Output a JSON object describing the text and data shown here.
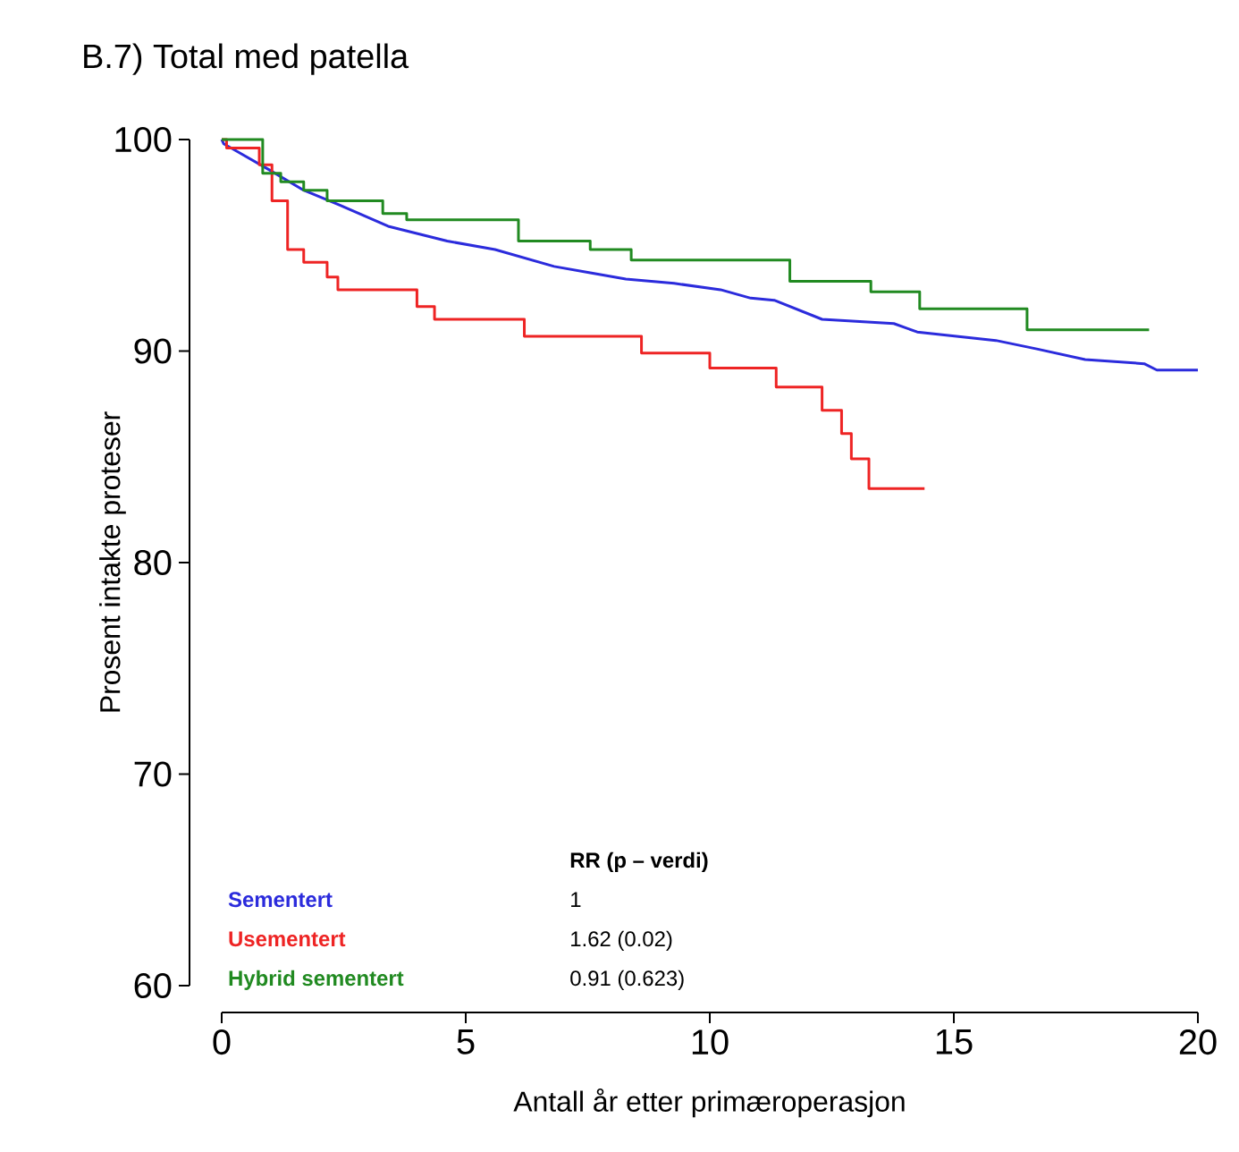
{
  "chart_data": {
    "type": "step",
    "title": "B.7) Total med patella",
    "xlabel": "Antall år etter primæroperasjon",
    "ylabel": "Prosent intakte proteser",
    "xlim": [
      0,
      20
    ],
    "ylim": [
      60,
      100
    ],
    "xticks": [
      0,
      5,
      10,
      15,
      20
    ],
    "yticks": [
      60,
      70,
      80,
      90,
      100
    ],
    "grid": false,
    "legend": "bottom left",
    "line_style": "solid",
    "marker": "none",
    "series": [
      {
        "name": "Sementert",
        "type": "line",
        "color": "#2b2bdc",
        "x": [
          0,
          0.04,
          0.95,
          1.68,
          2.42,
          3.41,
          4.62,
          5.6,
          6.81,
          7.55,
          8.28,
          9.27,
          10.22,
          10.84,
          11.32,
          12.3,
          13.77,
          14.25,
          15.86,
          16.7,
          17.69,
          18.9,
          19.16,
          20.0
        ],
        "values": [
          100,
          99.8,
          98.6,
          97.6,
          96.9,
          95.9,
          95.2,
          94.8,
          94.0,
          93.7,
          93.4,
          93.2,
          92.9,
          92.5,
          92.4,
          91.5,
          91.3,
          90.9,
          90.5,
          90.1,
          89.6,
          89.4,
          89.1,
          89.1
        ]
      },
      {
        "name": "Usementert",
        "color": "#ee2424",
        "x": [
          0,
          0.1,
          0.77,
          1.03,
          1.35,
          1.68,
          2.16,
          2.38,
          4.0,
          4.36,
          6.2,
          8.6,
          10.0,
          11.36,
          12.3,
          12.7,
          12.9,
          13.26,
          14.4
        ],
        "values": [
          100,
          99.6,
          98.8,
          97.1,
          94.8,
          94.2,
          93.5,
          92.9,
          92.1,
          91.5,
          90.7,
          89.9,
          89.2,
          88.3,
          87.2,
          86.1,
          84.9,
          83.5,
          83.5
        ]
      },
      {
        "name": "Hybrid sementert",
        "color": "#218a21",
        "x": [
          0,
          0.84,
          1.21,
          1.68,
          2.16,
          3.3,
          3.79,
          6.08,
          7.55,
          8.39,
          11.64,
          13.3,
          14.3,
          16.5,
          19.0
        ],
        "values": [
          100,
          98.4,
          98.0,
          97.6,
          97.1,
          96.5,
          96.2,
          95.2,
          94.8,
          94.3,
          93.3,
          92.8,
          92.0,
          91.0,
          91.0
        ]
      }
    ],
    "annotations": [
      "RR (p – verdi)",
      "1",
      "1.62 (0.02)",
      "0.91 (0.623)"
    ]
  }
}
